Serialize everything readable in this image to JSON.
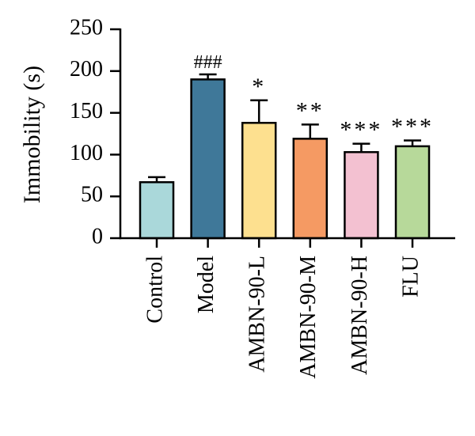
{
  "chart_data": {
    "type": "bar",
    "title": "",
    "xlabel": "",
    "ylabel": "Immobility (s)",
    "ylim": [
      0,
      250
    ],
    "yticks": [
      0,
      50,
      100,
      150,
      200,
      250
    ],
    "grid": false,
    "legend": "none",
    "categories": [
      "Control",
      "Model",
      "AMBN-90-L",
      "AMBN-90-M",
      "AMBN-90-H",
      "FLU"
    ],
    "values": [
      67,
      190,
      138,
      119,
      103,
      110
    ],
    "errors": [
      6,
      6,
      27,
      17,
      10,
      7
    ],
    "annotations": [
      "",
      "###",
      "*",
      "**",
      "***",
      "***"
    ],
    "colors": [
      "#aad8da",
      "#3f7899",
      "#fde08f",
      "#f59a63",
      "#f3c1d1",
      "#b7d99a"
    ]
  }
}
